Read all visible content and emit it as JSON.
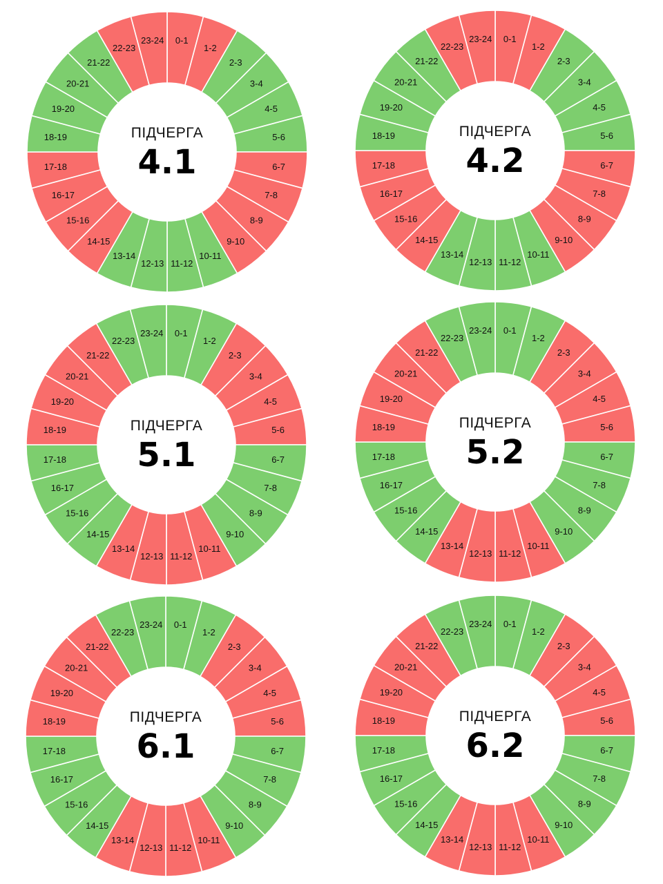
{
  "colors": {
    "on": "#7dce6e",
    "off": "#f96d6b",
    "divider": "#ffffff"
  },
  "hour_labels": [
    "0-1",
    "1-2",
    "2-3",
    "3-4",
    "4-5",
    "5-6",
    "6-7",
    "7-8",
    "8-9",
    "9-10",
    "10-11",
    "11-12",
    "12-13",
    "13-14",
    "14-15",
    "15-16",
    "16-17",
    "17-18",
    "18-19",
    "19-20",
    "20-21",
    "21-22",
    "22-23",
    "23-24"
  ],
  "wheels": [
    {
      "title": "ПІДЧЕРГА",
      "number": "4.1",
      "slots": [
        "off",
        "off",
        "on",
        "on",
        "on",
        "on",
        "off",
        "off",
        "off",
        "off",
        "on",
        "on",
        "on",
        "on",
        "off",
        "off",
        "off",
        "off",
        "on",
        "on",
        "on",
        "on",
        "off",
        "off"
      ]
    },
    {
      "title": "ПІДЧЕРГА",
      "number": "4.2",
      "slots": [
        "off",
        "off",
        "on",
        "on",
        "on",
        "on",
        "off",
        "off",
        "off",
        "off",
        "on",
        "on",
        "on",
        "on",
        "off",
        "off",
        "off",
        "off",
        "on",
        "on",
        "on",
        "on",
        "off",
        "off"
      ]
    },
    {
      "title": "ПІДЧЕРГА",
      "number": "5.1",
      "slots": [
        "on",
        "on",
        "off",
        "off",
        "off",
        "off",
        "on",
        "on",
        "on",
        "on",
        "off",
        "off",
        "off",
        "off",
        "on",
        "on",
        "on",
        "on",
        "off",
        "off",
        "off",
        "off",
        "on",
        "on"
      ]
    },
    {
      "title": "ПІДЧЕРГА",
      "number": "5.2",
      "slots": [
        "on",
        "on",
        "off",
        "off",
        "off",
        "off",
        "on",
        "on",
        "on",
        "on",
        "off",
        "off",
        "off",
        "off",
        "on",
        "on",
        "on",
        "on",
        "off",
        "off",
        "off",
        "off",
        "on",
        "on"
      ]
    },
    {
      "title": "ПІДЧЕРГА",
      "number": "6.1",
      "slots": [
        "on",
        "on",
        "off",
        "off",
        "off",
        "off",
        "on",
        "on",
        "on",
        "on",
        "off",
        "off",
        "off",
        "off",
        "on",
        "on",
        "on",
        "on",
        "off",
        "off",
        "off",
        "off",
        "on",
        "on"
      ]
    },
    {
      "title": "ПІДЧЕРГА",
      "number": "6.2",
      "slots": [
        "on",
        "on",
        "off",
        "off",
        "off",
        "off",
        "on",
        "on",
        "on",
        "on",
        "off",
        "off",
        "off",
        "off",
        "on",
        "on",
        "on",
        "on",
        "off",
        "off",
        "off",
        "off",
        "on",
        "on"
      ]
    }
  ]
}
